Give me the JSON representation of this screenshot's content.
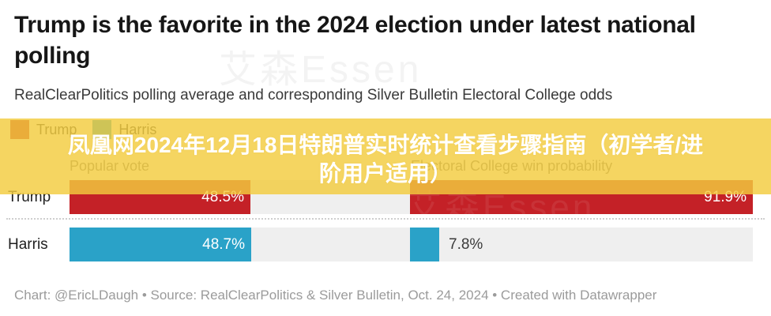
{
  "header": {
    "title": "Trump is the favorite in the 2024 election under latest national polling",
    "subtitle": "RealClearPolitics polling average and corresponding Silver Bulletin Electoral College odds"
  },
  "watermark": {
    "text": "艾森Essen"
  },
  "overlay_banner": {
    "text": "凤凰网2024年12月18日特朗普实时统计查看步骤指南（初学者/进阶用户适用）",
    "line1": "凤凰网2024年12月18日特朗普实时统计查看步骤指南（初学者/进",
    "line2": "阶用户适用）",
    "background_color": "#f3cc3e",
    "text_color": "#ffffff"
  },
  "legend": {
    "items": [
      {
        "label": "Trump",
        "color": "#c42127"
      },
      {
        "label": "Harris",
        "color": "#2aa2c8"
      }
    ]
  },
  "chart_data": {
    "type": "bar",
    "orientation": "horizontal",
    "categories": [
      "Trump",
      "Harris"
    ],
    "series": [
      {
        "name": "Popular vote",
        "values": [
          48.5,
          48.7
        ]
      },
      {
        "name": "Electoral College win probability",
        "values": [
          91.9,
          7.8
        ]
      }
    ],
    "value_labels": [
      [
        "48.5%",
        "91.9%"
      ],
      [
        "48.7%",
        "7.8%"
      ]
    ],
    "category_colors": {
      "Trump": "#c42127",
      "Harris": "#2aa2c8"
    },
    "track_color": "#efefef",
    "value_suffix": "%",
    "axis_range": [
      0,
      100
    ],
    "grid": false,
    "legend_position": "top-left",
    "column_headers": [
      "Popular vote",
      "Electoral College win probability"
    ],
    "title": "Trump is the favorite in the 2024 election under latest national polling",
    "subtitle": "RealClearPolitics polling average and corresponding Silver Bulletin Electoral College odds"
  },
  "footer": {
    "credit": "Chart: @EricLDaugh • Source: RealClearPolitics & Silver Bulletin, Oct. 24, 2024 • Created with Datawrapper"
  }
}
